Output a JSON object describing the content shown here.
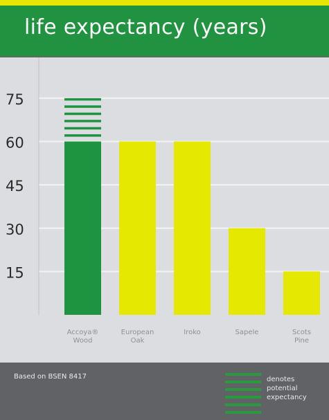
{
  "header": {
    "title": "life expectancy (years)"
  },
  "footer": {
    "source": "Based on BSEN 8417",
    "legend_lines": [
      "denotes",
      "potential",
      "expectancy"
    ]
  },
  "colors": {
    "header_green": "#21923f",
    "top_strip_yellow": "#e6e600",
    "accoya_green": "#1e9440",
    "bar_yellow": "#e5e800",
    "plot_background": "#dcdde0",
    "footer_grey": "#606265"
  },
  "chart_data": {
    "type": "bar",
    "title": "life expectancy (years)",
    "xlabel": "",
    "ylabel": "",
    "ylim": [
      0,
      80
    ],
    "yticks": [
      15,
      30,
      45,
      60,
      75
    ],
    "grid": true,
    "categories": [
      [
        "Accoya®",
        "Wood"
      ],
      [
        "European",
        "Oak"
      ],
      [
        "Iroko"
      ],
      [
        "Sapele"
      ],
      [
        "Scots",
        "Pine"
      ]
    ],
    "values": [
      60,
      60,
      60,
      30,
      15
    ],
    "potential_extension": [
      {
        "category_index": 0,
        "from": 60,
        "to": 75
      }
    ],
    "bar_colors": [
      "#1e9440",
      "#e5e800",
      "#e5e800",
      "#e5e800",
      "#e5e800"
    ]
  }
}
